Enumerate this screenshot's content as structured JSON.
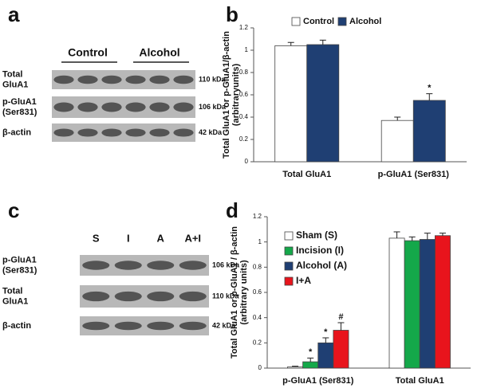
{
  "panel_labels": [
    "a",
    "b",
    "c",
    "d"
  ],
  "blots": [
    {
      "groups": [
        "Control",
        "Alcohol"
      ],
      "rows": [
        {
          "label": [
            "Total",
            "GluA1"
          ],
          "kda": "110 kDa"
        },
        {
          "label": [
            "p-GluA1",
            "(Ser831)"
          ],
          "kda": "106 kDa"
        },
        {
          "label": [
            "β-actin"
          ],
          "kda": "42 kDa"
        }
      ]
    },
    {
      "lanes": [
        "S",
        "I",
        "A",
        "A+I"
      ],
      "rows": [
        {
          "label": [
            "p-GluA1",
            "(Ser831)"
          ],
          "kda": "106 kDa"
        },
        {
          "label": [
            "Total",
            "GluA1"
          ],
          "kda": "110 kDa"
        },
        {
          "label": [
            "β-actin"
          ],
          "kda": "42 kDa"
        }
      ]
    }
  ],
  "chart_data": [
    {
      "type": "bar",
      "ylabel": [
        "Total GluA1 or p-GluA1/β-actin",
        "(arbitraryunits)"
      ],
      "categories": [
        "Total GluA1",
        "p-GluA1 (Ser831)"
      ],
      "series": [
        {
          "name": "Control",
          "color": "#ffffff",
          "values": [
            1.04,
            0.37
          ],
          "errors": [
            0.03,
            0.03
          ],
          "markers": [
            null,
            null
          ]
        },
        {
          "name": "Alcohol",
          "color": "#1f3f73",
          "values": [
            1.05,
            0.55
          ],
          "errors": [
            0.04,
            0.06
          ],
          "markers": [
            null,
            "*"
          ]
        }
      ],
      "ylim": [
        0,
        1.2
      ],
      "yticks": [
        0,
        0.2,
        0.4,
        0.6,
        0.8,
        1,
        1.2
      ],
      "legend": "top"
    },
    {
      "type": "bar",
      "ylabel": [
        "Total GluA1 or p-GluA1 / β-actin",
        "(arbitrary units)"
      ],
      "categories": [
        "p-GluA1 (Ser831)",
        "Total GluA1"
      ],
      "series": [
        {
          "name": "Sham (S)",
          "color": "#ffffff",
          "values": [
            0.01,
            1.03
          ],
          "errors": [
            0.005,
            0.05
          ],
          "markers": [
            null,
            null
          ]
        },
        {
          "name": "Incision (I)",
          "color": "#14a84a",
          "values": [
            0.05,
            1.01
          ],
          "errors": [
            0.03,
            0.03
          ],
          "markers": [
            "*",
            null
          ]
        },
        {
          "name": "Alcohol (A)",
          "color": "#1f3f73",
          "values": [
            0.2,
            1.02
          ],
          "errors": [
            0.04,
            0.05
          ],
          "markers": [
            "*",
            null
          ]
        },
        {
          "name": "I+A",
          "color": "#e8141c",
          "values": [
            0.3,
            1.05
          ],
          "errors": [
            0.06,
            0.02
          ],
          "markers": [
            "#",
            null
          ]
        }
      ],
      "ylim": [
        0,
        1.2
      ],
      "yticks": [
        0,
        0.2,
        0.4,
        0.6,
        0.8,
        1,
        1.2
      ],
      "legend": "upper left"
    }
  ]
}
